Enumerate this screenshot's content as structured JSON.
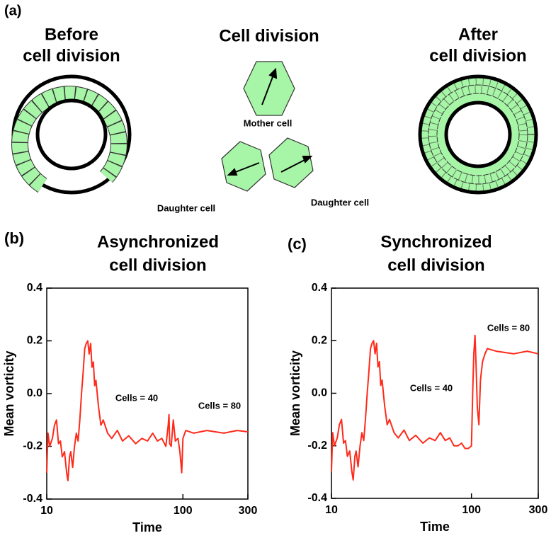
{
  "panel_a": {
    "label": "(a)",
    "before_title": [
      "Before",
      "cell division"
    ],
    "center_title": "Cell division",
    "mother_label": "Mother cell",
    "daughter_labels": [
      "Daughter cell",
      "Daughter cell"
    ],
    "after_title": [
      "After",
      "cell division"
    ]
  },
  "chart_data": [
    {
      "type": "line",
      "panel_label": "(b)",
      "title": [
        "Asynchronized",
        "cell division"
      ],
      "xlabel": "Time",
      "ylabel": "Mean vorticity",
      "xscale": "log",
      "xlim": [
        10,
        300
      ],
      "xticks": [
        10,
        100,
        300
      ],
      "ylim": [
        -0.4,
        0.4
      ],
      "yticks": [
        -0.4,
        -0.2,
        {
          "value": 0,
          "label": "0.0"
        },
        0.2,
        0.4
      ],
      "annotations": [
        "Cells = 40",
        "Cells = 80"
      ],
      "series": [
        {
          "color": "#ff2a1a",
          "x": [
            10,
            10.2,
            10.5,
            11,
            11.4,
            11.8,
            12.2,
            12.6,
            13,
            13.5,
            14,
            14.3,
            14.7,
            15,
            15.5,
            16,
            16.5,
            17,
            17.5,
            18,
            18.5,
            19,
            19.5,
            20,
            20.5,
            21,
            21.5,
            22,
            22.5,
            23,
            24,
            25,
            26,
            28,
            30,
            33,
            36,
            40,
            45,
            50,
            55,
            60,
            65,
            70,
            75,
            78,
            79,
            80,
            82,
            85,
            88,
            92,
            95,
            98,
            100,
            105,
            120,
            150,
            200,
            250,
            300
          ],
          "values": [
            -0.3,
            -0.15,
            -0.2,
            -0.17,
            -0.12,
            -0.1,
            -0.19,
            -0.18,
            -0.24,
            -0.22,
            -0.3,
            -0.33,
            -0.24,
            -0.22,
            -0.28,
            -0.2,
            -0.15,
            -0.18,
            -0.1,
            0.0,
            0.08,
            0.17,
            0.19,
            0.2,
            0.15,
            0.19,
            0.1,
            0.12,
            0.03,
            0.05,
            -0.05,
            -0.12,
            -0.1,
            -0.15,
            -0.17,
            -0.14,
            -0.18,
            -0.16,
            -0.19,
            -0.17,
            -0.18,
            -0.15,
            -0.18,
            -0.17,
            -0.2,
            -0.12,
            -0.08,
            -0.19,
            -0.2,
            -0.1,
            -0.18,
            -0.17,
            -0.22,
            -0.3,
            -0.17,
            -0.14,
            -0.15,
            -0.14,
            -0.15,
            -0.14,
            -0.145
          ]
        }
      ]
    },
    {
      "type": "line",
      "panel_label": "(c)",
      "title": [
        "Synchronized",
        "cell division"
      ],
      "xlabel": "Time",
      "ylabel": "Mean vorticity",
      "xscale": "log",
      "xlim": [
        10,
        300
      ],
      "xticks": [
        10,
        100,
        300
      ],
      "ylim": [
        -0.4,
        0.4
      ],
      "yticks": [
        -0.4,
        -0.2,
        {
          "value": 0,
          "label": "0.0"
        },
        0.2,
        0.4
      ],
      "annotations": [
        "Cells = 40",
        "Cells = 80"
      ],
      "series": [
        {
          "color": "#ff2a1a",
          "x": [
            10,
            10.2,
            10.5,
            11,
            11.4,
            11.8,
            12.2,
            12.6,
            13,
            13.5,
            14,
            14.3,
            14.7,
            15,
            15.5,
            16,
            16.5,
            17,
            17.5,
            18,
            18.5,
            19,
            19.5,
            20,
            20.5,
            21,
            21.5,
            22,
            22.5,
            23,
            24,
            25,
            26,
            28,
            30,
            33,
            36,
            40,
            45,
            50,
            55,
            60,
            65,
            70,
            75,
            80,
            85,
            90,
            95,
            100,
            102,
            104,
            106,
            108,
            110,
            113,
            116,
            120,
            125,
            130,
            150,
            200,
            250,
            300
          ],
          "values": [
            -0.3,
            -0.15,
            -0.2,
            -0.17,
            -0.12,
            -0.1,
            -0.19,
            -0.18,
            -0.24,
            -0.22,
            -0.3,
            -0.33,
            -0.24,
            -0.22,
            -0.28,
            -0.2,
            -0.15,
            -0.18,
            -0.1,
            0.0,
            0.08,
            0.17,
            0.19,
            0.2,
            0.15,
            0.19,
            0.1,
            0.12,
            0.03,
            0.05,
            -0.05,
            -0.12,
            -0.1,
            -0.15,
            -0.17,
            -0.14,
            -0.18,
            -0.16,
            -0.19,
            -0.17,
            -0.18,
            -0.15,
            -0.18,
            -0.17,
            -0.2,
            -0.2,
            -0.19,
            -0.21,
            -0.21,
            -0.2,
            0.0,
            0.15,
            0.22,
            0.1,
            -0.05,
            -0.12,
            0.05,
            0.12,
            0.15,
            0.17,
            0.16,
            0.15,
            0.16,
            0.15
          ]
        }
      ]
    }
  ]
}
